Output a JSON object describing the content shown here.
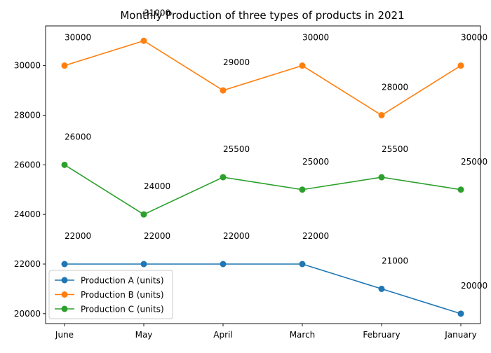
{
  "chart_data": {
    "type": "line",
    "title": "Monthly Production of three types of products in 2021",
    "xlabel": "",
    "ylabel": "",
    "categories": [
      "June",
      "May",
      "April",
      "March",
      "February",
      "January"
    ],
    "ylim": [
      19600,
      31600
    ],
    "yticks": [
      20000,
      22000,
      24000,
      26000,
      28000,
      30000
    ],
    "grid": false,
    "legend_position": "lower-left",
    "data_labels": true,
    "series": [
      {
        "name": "Production A (units)",
        "color": "#1f77b4",
        "values": [
          22000,
          22000,
          22000,
          22000,
          21000,
          20000
        ]
      },
      {
        "name": "Production B (units)",
        "color": "#ff7f0e",
        "values": [
          30000,
          31000,
          29000,
          30000,
          28000,
          30000
        ]
      },
      {
        "name": "Production C (units)",
        "color": "#2ca02c",
        "values": [
          26000,
          24000,
          25500,
          25000,
          25500,
          25000
        ]
      }
    ]
  }
}
